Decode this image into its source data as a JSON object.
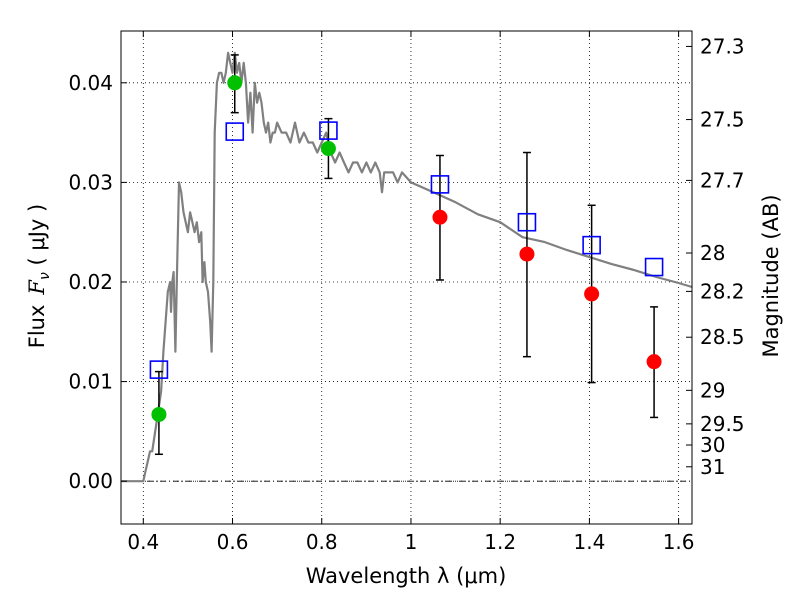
{
  "chart_data": {
    "type": "scatter",
    "xlabel": "Wavelength  λ (μm)",
    "ylabel_prefix": "Flux",
    "ylabel_symbol": "F",
    "ylabel_sub": "ν",
    "ylabel_unit": " ( μJy )",
    "y2label": "Magnitude (AB)",
    "xlim": [
      0.35,
      1.63
    ],
    "ylim": [
      -0.0043,
      0.0452
    ],
    "grid": true,
    "x_ticks": [
      {
        "value": 0.4,
        "label": "0.4"
      },
      {
        "value": 0.6,
        "label": "0.6"
      },
      {
        "value": 0.8,
        "label": "0.8"
      },
      {
        "value": 1.0,
        "label": "1"
      },
      {
        "value": 1.2,
        "label": "1.2"
      },
      {
        "value": 1.4,
        "label": "1.4"
      },
      {
        "value": 1.6,
        "label": "1.6"
      }
    ],
    "y_ticks": [
      {
        "value": 0.0,
        "label": "0.00"
      },
      {
        "value": 0.01,
        "label": "0.01"
      },
      {
        "value": 0.02,
        "label": "0.02"
      },
      {
        "value": 0.03,
        "label": "0.03"
      },
      {
        "value": 0.04,
        "label": "0.04"
      }
    ],
    "y2_ticks": [
      {
        "mag": 27.3,
        "label": "27.3"
      },
      {
        "mag": 27.5,
        "label": "27.5"
      },
      {
        "mag": 27.7,
        "label": "27.7"
      },
      {
        "mag": 28,
        "label": "28"
      },
      {
        "mag": 28.2,
        "label": "28.2"
      },
      {
        "mag": 28.5,
        "label": "28.5"
      },
      {
        "mag": 29,
        "label": "29"
      },
      {
        "mag": 29.5,
        "label": "29.5"
      },
      {
        "mag": 30,
        "label": "30"
      },
      {
        "mag": 31,
        "label": "31"
      }
    ],
    "model_spectrum": {
      "color": "#808080",
      "x": [
        0.35,
        0.4,
        0.405,
        0.41,
        0.415,
        0.42,
        0.43,
        0.44,
        0.445,
        0.45,
        0.455,
        0.46,
        0.462,
        0.465,
        0.468,
        0.472,
        0.475,
        0.48,
        0.485,
        0.49,
        0.495,
        0.5,
        0.505,
        0.51,
        0.515,
        0.52,
        0.525,
        0.53,
        0.533,
        0.537,
        0.54,
        0.545,
        0.55,
        0.553,
        0.557,
        0.56,
        0.565,
        0.57,
        0.575,
        0.58,
        0.585,
        0.59,
        0.595,
        0.6,
        0.605,
        0.61,
        0.615,
        0.62,
        0.625,
        0.63,
        0.635,
        0.64,
        0.645,
        0.65,
        0.655,
        0.66,
        0.665,
        0.67,
        0.675,
        0.68,
        0.685,
        0.69,
        0.695,
        0.7,
        0.71,
        0.72,
        0.73,
        0.74,
        0.75,
        0.76,
        0.77,
        0.78,
        0.79,
        0.8,
        0.81,
        0.82,
        0.83,
        0.84,
        0.85,
        0.86,
        0.87,
        0.88,
        0.89,
        0.9,
        0.91,
        0.92,
        0.93,
        0.935,
        0.94,
        0.95,
        0.96,
        0.97,
        0.98,
        1.0,
        1.05,
        1.1,
        1.15,
        1.2,
        1.25,
        1.3,
        1.35,
        1.4,
        1.45,
        1.5,
        1.55,
        1.6,
        1.63
      ],
      "y": [
        0.0,
        0.0,
        0.001,
        0.002,
        0.003,
        0.003,
        0.006,
        0.009,
        0.013,
        0.016,
        0.019,
        0.02,
        0.017,
        0.02,
        0.021,
        0.013,
        0.02,
        0.03,
        0.029,
        0.027,
        0.026,
        0.025,
        0.027,
        0.026,
        0.025,
        0.026,
        0.024,
        0.025,
        0.02,
        0.022,
        0.02,
        0.019,
        0.016,
        0.013,
        0.02,
        0.035,
        0.04,
        0.041,
        0.041,
        0.04,
        0.041,
        0.043,
        0.042,
        0.041,
        0.043,
        0.041,
        0.042,
        0.04,
        0.042,
        0.04,
        0.036,
        0.039,
        0.035,
        0.04,
        0.038,
        0.039,
        0.038,
        0.036,
        0.035,
        0.036,
        0.034,
        0.035,
        0.035,
        0.036,
        0.035,
        0.035,
        0.034,
        0.036,
        0.034,
        0.035,
        0.034,
        0.034,
        0.033,
        0.034,
        0.035,
        0.033,
        0.032,
        0.033,
        0.032,
        0.031,
        0.032,
        0.032,
        0.031,
        0.032,
        0.031,
        0.032,
        0.031,
        0.029,
        0.031,
        0.031,
        0.031,
        0.03,
        0.031,
        0.03,
        0.029,
        0.028,
        0.0268,
        0.026,
        0.0245,
        0.024,
        0.0232,
        0.0225,
        0.0218,
        0.0212,
        0.0205,
        0.0199,
        0.0195
      ]
    },
    "series": [
      {
        "name": "",
        "marker": "circle",
        "color": "#00c000",
        "points": [
          {
            "x": 0.435,
            "y": 0.0067,
            "yerr_low": 0.0027,
            "yerr_high": 0.011
          },
          {
            "x": 0.605,
            "y": 0.04,
            "yerr_low": 0.037,
            "yerr_high": 0.0428
          },
          {
            "x": 0.815,
            "y": 0.0334,
            "yerr_low": 0.0304,
            "yerr_high": 0.0364
          }
        ]
      },
      {
        "name": "",
        "marker": "circle",
        "color": "#ff0000",
        "points": [
          {
            "x": 1.065,
            "y": 0.0265,
            "yerr_low": 0.0202,
            "yerr_high": 0.0327
          },
          {
            "x": 1.26,
            "y": 0.0228,
            "yerr_low": 0.0125,
            "yerr_high": 0.033
          },
          {
            "x": 1.405,
            "y": 0.0188,
            "yerr_low": 0.0099,
            "yerr_high": 0.0277
          },
          {
            "x": 1.545,
            "y": 0.012,
            "yerr_low": 0.0064,
            "yerr_high": 0.0175
          }
        ]
      },
      {
        "name": "",
        "marker": "open-square",
        "color": "#0000ff",
        "points": [
          {
            "x": 0.435,
            "y": 0.0112
          },
          {
            "x": 0.605,
            "y": 0.0351
          },
          {
            "x": 0.815,
            "y": 0.0352
          },
          {
            "x": 1.065,
            "y": 0.0298
          },
          {
            "x": 1.26,
            "y": 0.026
          },
          {
            "x": 1.405,
            "y": 0.0237
          },
          {
            "x": 1.545,
            "y": 0.0215
          }
        ]
      }
    ]
  }
}
